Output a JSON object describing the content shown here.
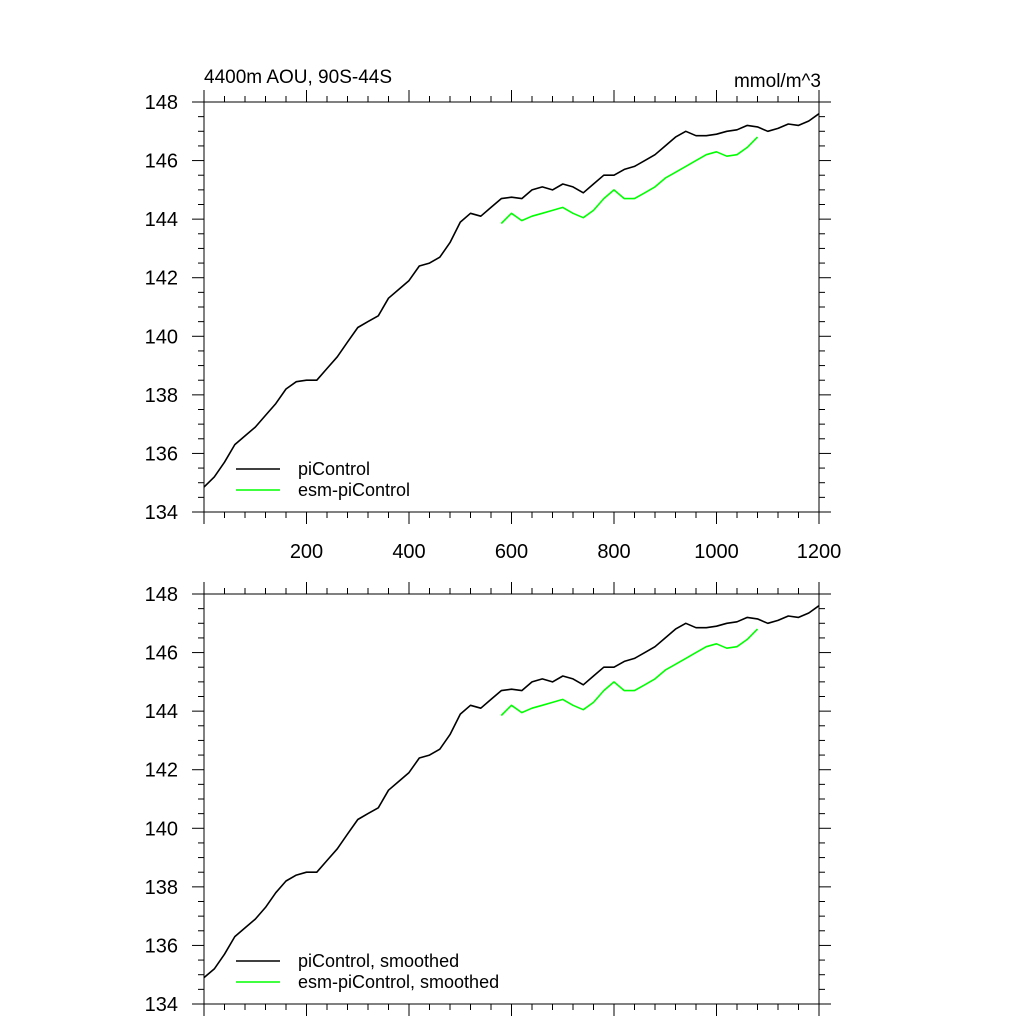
{
  "chart_data": [
    {
      "type": "line",
      "title_left": "4400m AOU, 90S-44S",
      "title_right": "mmol/m^3",
      "xlim": [
        0,
        1200
      ],
      "ylim": [
        134,
        148
      ],
      "x_ticks": [
        200,
        400,
        600,
        800,
        1000,
        1200
      ],
      "x_tick_labels": [
        "200",
        "400",
        "600",
        "800",
        "1000",
        "1200"
      ],
      "y_ticks": [
        134,
        136,
        138,
        140,
        142,
        144,
        146,
        148
      ],
      "y_tick_labels": [
        "134",
        "136",
        "138",
        "140",
        "142",
        "144",
        "146",
        "148"
      ],
      "grid": false,
      "legend_position": "bottom-left",
      "series": [
        {
          "name": "piControl",
          "color": "#000000",
          "x": [
            0,
            20,
            40,
            60,
            80,
            100,
            120,
            140,
            160,
            180,
            200,
            220,
            240,
            260,
            280,
            300,
            320,
            340,
            360,
            380,
            400,
            420,
            440,
            460,
            480,
            500,
            520,
            540,
            560,
            580,
            600,
            620,
            640,
            660,
            680,
            700,
            720,
            740,
            760,
            780,
            800,
            820,
            840,
            860,
            880,
            900,
            920,
            940,
            960,
            980,
            1000,
            1020,
            1040,
            1060,
            1080,
            1100,
            1120,
            1140,
            1160,
            1180,
            1200
          ],
          "y": [
            134.85,
            135.2,
            135.7,
            136.3,
            136.6,
            136.9,
            137.3,
            137.7,
            138.2,
            138.45,
            138.5,
            138.5,
            138.9,
            139.3,
            139.8,
            140.3,
            140.5,
            140.7,
            141.3,
            141.6,
            141.9,
            142.4,
            142.5,
            142.7,
            143.2,
            143.9,
            144.2,
            144.1,
            144.4,
            144.7,
            144.75,
            144.7,
            145.0,
            145.1,
            145.0,
            145.2,
            145.1,
            144.9,
            145.2,
            145.5,
            145.5,
            145.7,
            145.8,
            146.0,
            146.2,
            146.5,
            146.8,
            147.0,
            146.85,
            146.85,
            146.9,
            147.0,
            147.05,
            147.2,
            147.15,
            147.0,
            147.1,
            147.25,
            147.2,
            147.35,
            147.6
          ]
        },
        {
          "name": "esm-piControl",
          "color": "#00ff00",
          "x": [
            580,
            600,
            620,
            640,
            660,
            680,
            700,
            720,
            740,
            760,
            780,
            800,
            820,
            840,
            860,
            880,
            900,
            920,
            940,
            960,
            980,
            1000,
            1020,
            1040,
            1060,
            1080
          ],
          "y": [
            143.85,
            144.2,
            143.95,
            144.1,
            144.2,
            144.3,
            144.4,
            144.2,
            144.05,
            144.3,
            144.7,
            145.0,
            144.7,
            144.7,
            144.9,
            145.1,
            145.4,
            145.6,
            145.8,
            146.0,
            146.2,
            146.3,
            146.15,
            146.2,
            146.45,
            146.8
          ]
        }
      ],
      "legend": [
        "piControl",
        "esm-piControl"
      ]
    },
    {
      "type": "line",
      "xlim": [
        0,
        1200
      ],
      "ylim": [
        134,
        148
      ],
      "y_ticks": [
        134,
        136,
        138,
        140,
        142,
        144,
        146,
        148
      ],
      "y_tick_labels": [
        "134",
        "136",
        "138",
        "140",
        "142",
        "144",
        "146",
        "148"
      ],
      "grid": false,
      "legend_position": "bottom-left",
      "series": [
        {
          "name": "piControl, smoothed",
          "color": "#000000",
          "x": [
            0,
            20,
            40,
            60,
            80,
            100,
            120,
            140,
            160,
            180,
            200,
            220,
            240,
            260,
            280,
            300,
            320,
            340,
            360,
            380,
            400,
            420,
            440,
            460,
            480,
            500,
            520,
            540,
            560,
            580,
            600,
            620,
            640,
            660,
            680,
            700,
            720,
            740,
            760,
            780,
            800,
            820,
            840,
            860,
            880,
            900,
            920,
            940,
            960,
            980,
            1000,
            1020,
            1040,
            1060,
            1080,
            1100,
            1120,
            1140,
            1160,
            1180,
            1200
          ],
          "y": [
            134.9,
            135.2,
            135.7,
            136.3,
            136.6,
            136.9,
            137.3,
            137.8,
            138.2,
            138.4,
            138.5,
            138.5,
            138.9,
            139.3,
            139.8,
            140.3,
            140.5,
            140.7,
            141.3,
            141.6,
            141.9,
            142.4,
            142.5,
            142.7,
            143.2,
            143.9,
            144.2,
            144.1,
            144.4,
            144.7,
            144.75,
            144.7,
            145.0,
            145.1,
            145.0,
            145.2,
            145.1,
            144.9,
            145.2,
            145.5,
            145.5,
            145.7,
            145.8,
            146.0,
            146.2,
            146.5,
            146.8,
            147.0,
            146.85,
            146.85,
            146.9,
            147.0,
            147.05,
            147.2,
            147.15,
            147.0,
            147.1,
            147.25,
            147.2,
            147.35,
            147.6
          ]
        },
        {
          "name": "esm-piControl, smoothed",
          "color": "#00ff00",
          "x": [
            580,
            600,
            620,
            640,
            660,
            680,
            700,
            720,
            740,
            760,
            780,
            800,
            820,
            840,
            860,
            880,
            900,
            920,
            940,
            960,
            980,
            1000,
            1020,
            1040,
            1060,
            1080
          ],
          "y": [
            143.85,
            144.2,
            143.95,
            144.1,
            144.2,
            144.3,
            144.4,
            144.2,
            144.05,
            144.3,
            144.7,
            145.0,
            144.7,
            144.7,
            144.9,
            145.1,
            145.4,
            145.6,
            145.8,
            146.0,
            146.2,
            146.3,
            146.15,
            146.2,
            146.45,
            146.8
          ]
        }
      ],
      "legend": [
        "piControl, smoothed",
        "esm-piControl, smoothed"
      ]
    }
  ]
}
